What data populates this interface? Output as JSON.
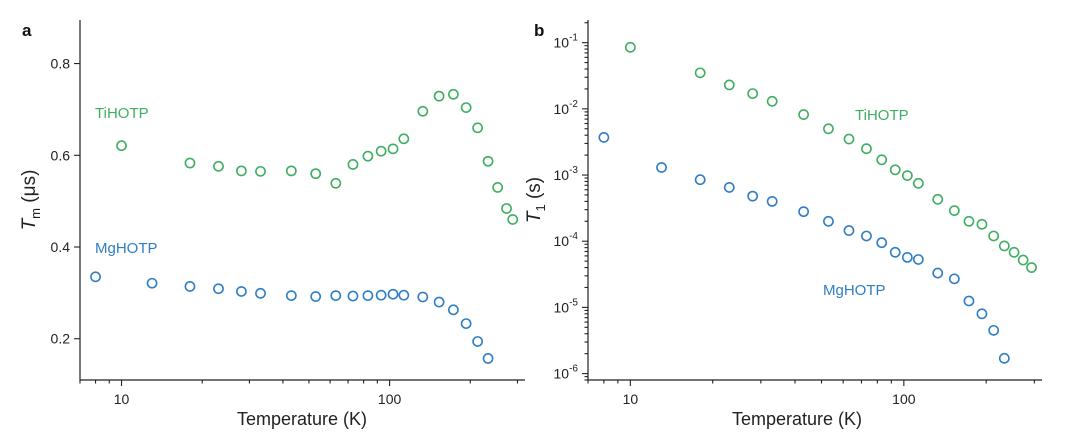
{
  "chart_data": [
    {
      "panel_label": "a",
      "type": "scatter",
      "xscale": "log",
      "yscale": "linear",
      "xlim": [
        7,
        320
      ],
      "ylim": [
        0.11,
        0.895
      ],
      "xticks": [
        10,
        100
      ],
      "xtick_labels": [
        "10",
        "100"
      ],
      "yticks": [
        0.2,
        0.4,
        0.6,
        0.8
      ],
      "ytick_labels": [
        "0.2",
        "0.4",
        "0.6",
        "0.8"
      ],
      "xlabel": "Temperature (K)",
      "ylabel_italic": "T",
      "ylabel_sub": "m",
      "ylabel_rest": " (μs)",
      "series": [
        {
          "name": "TiHOTP",
          "color": "#3fae62",
          "x": [
            10,
            18,
            23,
            28,
            33,
            43,
            53,
            63,
            73,
            83,
            93,
            103,
            113,
            133,
            153,
            173,
            193,
            213,
            233,
            253,
            273,
            288
          ],
          "y": [
            0.621,
            0.583,
            0.576,
            0.566,
            0.565,
            0.566,
            0.56,
            0.539,
            0.58,
            0.598,
            0.609,
            0.614,
            0.636,
            0.696,
            0.729,
            0.733,
            0.704,
            0.66,
            0.587,
            0.53,
            0.484,
            0.46
          ]
        },
        {
          "name": "MgHOTP",
          "color": "#2f7ec4",
          "x": [
            8,
            13,
            18,
            23,
            28,
            33,
            43,
            53,
            63,
            73,
            83,
            93,
            103,
            113,
            133,
            153,
            173,
            193,
            213,
            233
          ],
          "y": [
            0.335,
            0.321,
            0.314,
            0.309,
            0.303,
            0.299,
            0.294,
            0.292,
            0.294,
            0.293,
            0.294,
            0.295,
            0.297,
            0.295,
            0.291,
            0.28,
            0.263,
            0.233,
            0.194,
            0.157
          ]
        }
      ]
    },
    {
      "panel_label": "b",
      "type": "scatter",
      "xscale": "log",
      "yscale": "log",
      "xlim": [
        7,
        320
      ],
      "ylim": [
        8e-07,
        0.22
      ],
      "xticks": [
        10,
        100
      ],
      "xtick_labels": [
        "10",
        "100"
      ],
      "yticks": [
        1e-06,
        1e-05,
        0.0001,
        0.001,
        0.01,
        0.1
      ],
      "ytick_base": "10",
      "ytick_exponents": [
        "-6",
        "-5",
        "-4",
        "-3",
        "-2",
        "-1"
      ],
      "xlabel": "Temperature (K)",
      "ylabel_italic": "T",
      "ylabel_sub": "1",
      "ylabel_rest": " (s)",
      "series": [
        {
          "name": "TiHOTP",
          "color": "#3fae62",
          "x": [
            10,
            18,
            23,
            28,
            33,
            43,
            53,
            63,
            73,
            83,
            93,
            103,
            113,
            133,
            153,
            173,
            193,
            213,
            233,
            253,
            273,
            293
          ],
          "y": [
            0.085,
            0.035,
            0.023,
            0.017,
            0.013,
            0.0082,
            0.005,
            0.0035,
            0.0025,
            0.0017,
            0.0012,
            0.00098,
            0.00075,
            0.00043,
            0.00029,
            0.0002,
            0.00018,
            0.00012,
            8.5e-05,
            6.8e-05,
            5.2e-05,
            4e-05
          ]
        },
        {
          "name": "MgHOTP",
          "color": "#2f7ec4",
          "x": [
            8,
            13,
            18,
            23,
            28,
            33,
            43,
            53,
            63,
            73,
            83,
            93,
            103,
            113,
            133,
            153,
            173,
            193,
            213,
            233
          ],
          "y": [
            0.0037,
            0.0013,
            0.00085,
            0.00065,
            0.00048,
            0.0004,
            0.00028,
            0.0002,
            0.000145,
            0.00012,
            9.5e-05,
            6.8e-05,
            5.7e-05,
            5.3e-05,
            3.3e-05,
            2.7e-05,
            1.25e-05,
            8e-06,
            4.5e-06,
            1.7e-06
          ]
        }
      ]
    }
  ]
}
